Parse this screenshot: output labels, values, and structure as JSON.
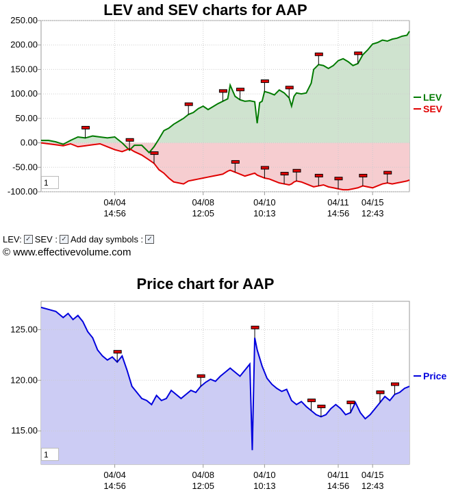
{
  "lev_chart": {
    "title": "LEV and SEV charts for AAP",
    "range_value": "1",
    "colors": {
      "lev": "#007a00",
      "lev_fill": "#cfe3cf",
      "sev": "#e00000",
      "sev_fill": "#f6cdd0"
    }
  },
  "price_chart": {
    "title": "Price chart for AAP",
    "range_value": "1",
    "colors": {
      "price": "#0000dd",
      "price_fill": "#ccccf4"
    }
  },
  "controls": {
    "lev_label": "LEV:",
    "sev_label": "SEV :",
    "day_symbols_label": "Add day symbols :"
  },
  "copyright": "© www.effectivevolume.com",
  "chart_data": [
    {
      "type": "area",
      "title": "LEV and SEV charts for AAP",
      "x": [
        "04/04 14:56",
        "04/08 12:05",
        "04/10 10:13",
        "04/11 14:56",
        "04/15 12:43"
      ],
      "x_tick_labels": [
        [
          "04/04",
          "14:56"
        ],
        [
          "04/08",
          "12:05"
        ],
        [
          "04/10",
          "10:13"
        ],
        [
          "04/11",
          "14:56"
        ],
        [
          "04/15",
          "12:43"
        ]
      ],
      "y_ticks": [
        "250.00",
        "200.00",
        "150.00",
        "100.00",
        "50.00",
        "0.00",
        "-50.00",
        "-100.00"
      ],
      "ylim": [
        -100,
        250
      ],
      "grid": true,
      "legend": "right",
      "series": [
        {
          "name": "LEV",
          "color": "#007a00",
          "points": [
            [
              0,
              5
            ],
            [
              3,
              5
            ],
            [
              6,
              2
            ],
            [
              9,
              -3
            ],
            [
              12,
              5
            ],
            [
              15,
              12
            ],
            [
              18,
              10
            ],
            [
              21,
              14
            ],
            [
              24,
              12
            ],
            [
              27,
              10
            ],
            [
              30,
              12
            ],
            [
              33,
              0
            ],
            [
              36,
              -15
            ],
            [
              38,
              -5
            ],
            [
              41,
              -5
            ],
            [
              44,
              -20
            ],
            [
              46,
              -8
            ],
            [
              48,
              8
            ],
            [
              50,
              25
            ],
            [
              52,
              30
            ],
            [
              54,
              38
            ],
            [
              56,
              44
            ],
            [
              58,
              50
            ],
            [
              60,
              58
            ],
            [
              62,
              62
            ],
            [
              64,
              70
            ],
            [
              66,
              75
            ],
            [
              68,
              68
            ],
            [
              70,
              74
            ],
            [
              72,
              80
            ],
            [
              74,
              85
            ],
            [
              76,
              90
            ],
            [
              77,
              118
            ],
            [
              79,
              95
            ],
            [
              81,
              88
            ],
            [
              83,
              85
            ],
            [
              85,
              86
            ],
            [
              87,
              84
            ],
            [
              88,
              40
            ],
            [
              89,
              82
            ],
            [
              90,
              85
            ],
            [
              91,
              105
            ],
            [
              93,
              102
            ],
            [
              95,
              98
            ],
            [
              97,
              108
            ],
            [
              99,
              102
            ],
            [
              101,
              92
            ],
            [
              102,
              75
            ],
            [
              103,
              95
            ],
            [
              104,
              102
            ],
            [
              106,
              100
            ],
            [
              108,
              102
            ],
            [
              110,
              122
            ],
            [
              111,
              150
            ],
            [
              113,
              160
            ],
            [
              115,
              158
            ],
            [
              117,
              152
            ],
            [
              119,
              158
            ],
            [
              121,
              168
            ],
            [
              123,
              172
            ],
            [
              125,
              166
            ],
            [
              127,
              158
            ],
            [
              129,
              162
            ],
            [
              131,
              180
            ],
            [
              133,
              190
            ],
            [
              135,
              202
            ],
            [
              137,
              205
            ],
            [
              139,
              210
            ],
            [
              141,
              208
            ],
            [
              143,
              212
            ],
            [
              145,
              214
            ],
            [
              147,
              218
            ],
            [
              149,
              220
            ],
            [
              150,
              228
            ]
          ]
        },
        {
          "name": "SEV",
          "color": "#e00000",
          "points": [
            [
              0,
              0
            ],
            [
              3,
              -2
            ],
            [
              6,
              -4
            ],
            [
              9,
              -6
            ],
            [
              12,
              -2
            ],
            [
              15,
              -8
            ],
            [
              18,
              -6
            ],
            [
              21,
              -4
            ],
            [
              24,
              -2
            ],
            [
              27,
              -8
            ],
            [
              30,
              -14
            ],
            [
              33,
              -18
            ],
            [
              36,
              -12
            ],
            [
              38,
              -18
            ],
            [
              41,
              -25
            ],
            [
              44,
              -35
            ],
            [
              46,
              -42
            ],
            [
              48,
              -55
            ],
            [
              50,
              -62
            ],
            [
              52,
              -72
            ],
            [
              54,
              -80
            ],
            [
              56,
              -82
            ],
            [
              58,
              -84
            ],
            [
              60,
              -78
            ],
            [
              62,
              -76
            ],
            [
              64,
              -74
            ],
            [
              66,
              -72
            ],
            [
              68,
              -70
            ],
            [
              70,
              -68
            ],
            [
              72,
              -66
            ],
            [
              74,
              -64
            ],
            [
              76,
              -58
            ],
            [
              77,
              -56
            ],
            [
              79,
              -60
            ],
            [
              81,
              -64
            ],
            [
              83,
              -68
            ],
            [
              85,
              -65
            ],
            [
              87,
              -62
            ],
            [
              88,
              -66
            ],
            [
              89,
              -68
            ],
            [
              90,
              -70
            ],
            [
              91,
              -72
            ],
            [
              93,
              -74
            ],
            [
              95,
              -78
            ],
            [
              97,
              -82
            ],
            [
              99,
              -84
            ],
            [
              101,
              -86
            ],
            [
              102,
              -84
            ],
            [
              103,
              -80
            ],
            [
              104,
              -78
            ],
            [
              106,
              -80
            ],
            [
              108,
              -84
            ],
            [
              110,
              -88
            ],
            [
              111,
              -90
            ],
            [
              113,
              -88
            ],
            [
              115,
              -86
            ],
            [
              117,
              -90
            ],
            [
              119,
              -92
            ],
            [
              121,
              -94
            ],
            [
              123,
              -96
            ],
            [
              125,
              -96
            ],
            [
              127,
              -94
            ],
            [
              129,
              -92
            ],
            [
              131,
              -88
            ],
            [
              133,
              -90
            ],
            [
              135,
              -92
            ],
            [
              137,
              -88
            ],
            [
              139,
              -84
            ],
            [
              141,
              -82
            ],
            [
              143,
              -84
            ],
            [
              145,
              -82
            ],
            [
              147,
              -80
            ],
            [
              149,
              -78
            ],
            [
              150,
              -76
            ]
          ]
        }
      ],
      "annotations": "day symbols (red flag markers) on each series"
    },
    {
      "type": "area",
      "title": "Price chart for AAP",
      "x": [
        "04/04 14:56",
        "04/08 12:05",
        "04/10 10:13",
        "04/11 14:56",
        "04/15 12:43"
      ],
      "x_tick_labels": [
        [
          "04/04",
          "14:56"
        ],
        [
          "04/08",
          "12:05"
        ],
        [
          "04/10",
          "10:13"
        ],
        [
          "04/11",
          "14:56"
        ],
        [
          "04/15",
          "12:43"
        ]
      ],
      "y_ticks": [
        "125.00",
        "120.00",
        "115.00"
      ],
      "ylim": [
        111.7,
        127.8
      ],
      "grid": true,
      "legend": "right",
      "series": [
        {
          "name": "Price",
          "color": "#0000dd",
          "points": [
            [
              0,
              127.2
            ],
            [
              3,
              127.0
            ],
            [
              6,
              126.8
            ],
            [
              9,
              126.2
            ],
            [
              11,
              126.6
            ],
            [
              13,
              126.0
            ],
            [
              15,
              126.4
            ],
            [
              17,
              125.8
            ],
            [
              19,
              124.8
            ],
            [
              21,
              124.2
            ],
            [
              23,
              123.0
            ],
            [
              25,
              122.4
            ],
            [
              27,
              122.0
            ],
            [
              29,
              122.3
            ],
            [
              31,
              121.8
            ],
            [
              33,
              122.4
            ],
            [
              35,
              121.0
            ],
            [
              37,
              119.4
            ],
            [
              39,
              118.8
            ],
            [
              41,
              118.2
            ],
            [
              43,
              118.0
            ],
            [
              45,
              117.6
            ],
            [
              47,
              118.5
            ],
            [
              49,
              118.0
            ],
            [
              51,
              118.2
            ],
            [
              53,
              119.0
            ],
            [
              55,
              118.6
            ],
            [
              57,
              118.2
            ],
            [
              59,
              118.6
            ],
            [
              61,
              119.0
            ],
            [
              63,
              118.8
            ],
            [
              65,
              119.4
            ],
            [
              67,
              119.8
            ],
            [
              69,
              120.1
            ],
            [
              71,
              119.9
            ],
            [
              73,
              120.4
            ],
            [
              75,
              120.8
            ],
            [
              77,
              121.2
            ],
            [
              79,
              120.8
            ],
            [
              81,
              120.4
            ],
            [
              83,
              121.0
            ],
            [
              85,
              121.6
            ],
            [
              86,
              113.1
            ],
            [
              87,
              124.2
            ],
            [
              88,
              123.0
            ],
            [
              90,
              121.4
            ],
            [
              92,
              120.2
            ],
            [
              94,
              119.6
            ],
            [
              96,
              119.2
            ],
            [
              98,
              118.9
            ],
            [
              100,
              119.1
            ],
            [
              102,
              118.0
            ],
            [
              104,
              117.6
            ],
            [
              106,
              117.9
            ],
            [
              108,
              117.4
            ],
            [
              110,
              117.0
            ],
            [
              112,
              116.6
            ],
            [
              114,
              116.4
            ],
            [
              116,
              116.6
            ],
            [
              118,
              117.2
            ],
            [
              120,
              117.6
            ],
            [
              122,
              117.2
            ],
            [
              124,
              116.6
            ],
            [
              126,
              116.8
            ],
            [
              128,
              117.8
            ],
            [
              130,
              116.8
            ],
            [
              132,
              116.2
            ],
            [
              134,
              116.6
            ],
            [
              136,
              117.2
            ],
            [
              138,
              117.8
            ],
            [
              140,
              118.4
            ],
            [
              142,
              118.0
            ],
            [
              144,
              118.6
            ],
            [
              146,
              118.8
            ],
            [
              148,
              119.2
            ],
            [
              150,
              119.4
            ]
          ]
        }
      ],
      "annotations": "day symbols (red flag markers) on price series"
    }
  ]
}
